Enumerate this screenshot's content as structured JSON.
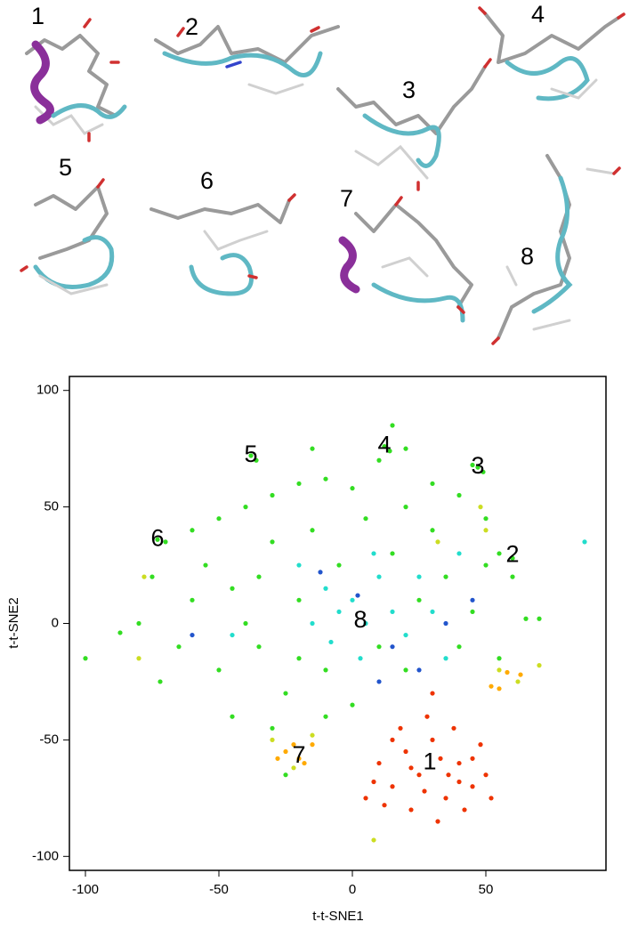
{
  "structures": {
    "labels": [
      "1",
      "2",
      "3",
      "4",
      "5",
      "6",
      "7",
      "8"
    ]
  },
  "chart_data": {
    "type": "scatter",
    "x_label": "t-t-SNE1",
    "y_label": "t-t-SNE2",
    "xlim": [
      -106,
      95
    ],
    "ylim": [
      -106,
      106
    ],
    "xticks": [
      -100,
      -50,
      0,
      50
    ],
    "yticks": [
      -100,
      -50,
      0,
      50,
      100
    ],
    "grid": false,
    "series": [
      {
        "color": "#33dd22",
        "x": [
          -60,
          -50,
          -40,
          -30,
          -20,
          -10,
          0,
          10,
          15,
          20,
          30,
          40,
          45,
          50,
          55,
          60,
          65,
          -70,
          -75,
          -80,
          -72,
          -65,
          -60,
          -55,
          -50,
          -45,
          -40,
          -35,
          -30,
          -25,
          -20,
          -15,
          -10,
          -5,
          5,
          10,
          15,
          20,
          25,
          30,
          35,
          40,
          45,
          50,
          55,
          -38,
          -36,
          12,
          14,
          47,
          49,
          -30,
          -10,
          0,
          -20,
          -45,
          -35,
          20,
          -15,
          -87,
          -100,
          -73,
          60,
          70,
          -25
        ],
        "y": [
          40,
          45,
          50,
          55,
          60,
          62,
          58,
          70,
          85,
          75,
          60,
          55,
          68,
          45,
          30,
          20,
          2,
          35,
          20,
          0,
          -25,
          -10,
          10,
          25,
          -20,
          -40,
          0,
          20,
          35,
          -30,
          10,
          40,
          -20,
          25,
          45,
          -10,
          30,
          50,
          10,
          40,
          20,
          -10,
          5,
          25,
          -15,
          72,
          70,
          76,
          74,
          67,
          65,
          -45,
          -40,
          -35,
          -15,
          15,
          -10,
          -20,
          75,
          -4,
          -15,
          36,
          28,
          2,
          -65
        ]
      },
      {
        "color": "#22ddcc",
        "x": [
          0,
          5,
          -5,
          10,
          -10,
          15,
          20,
          -15,
          25,
          -20,
          30,
          3,
          8,
          -8,
          35,
          87,
          -45,
          40
        ],
        "y": [
          10,
          0,
          5,
          20,
          15,
          5,
          -5,
          0,
          20,
          25,
          5,
          -15,
          30,
          -8,
          -15,
          35,
          -5,
          30
        ]
      },
      {
        "color": "#2255cc",
        "x": [
          2,
          15,
          35,
          -12,
          25,
          -60,
          45,
          10
        ],
        "y": [
          12,
          -10,
          0,
          22,
          -20,
          -5,
          10,
          -25
        ]
      },
      {
        "color": "#ccdd22",
        "x": [
          -78,
          -80,
          -30,
          -15,
          50,
          48,
          55,
          8,
          -22,
          62,
          70,
          32
        ],
        "y": [
          20,
          -15,
          -50,
          -48,
          40,
          50,
          -20,
          -93,
          -62,
          -25,
          -18,
          35
        ]
      },
      {
        "color": "#ffaa00",
        "x": [
          -25,
          -20,
          -15,
          -18,
          -22,
          52,
          55,
          63,
          58,
          -28
        ],
        "y": [
          -55,
          -58,
          -52,
          -60,
          -52,
          -27,
          -28,
          -22,
          -21,
          -58
        ]
      },
      {
        "color": "#ee3300",
        "x": [
          10,
          15,
          20,
          25,
          30,
          35,
          40,
          45,
          12,
          22,
          32,
          42,
          50,
          18,
          28,
          38,
          48,
          8,
          27,
          33,
          40,
          22,
          15,
          45,
          52,
          5,
          30,
          36
        ],
        "y": [
          -60,
          -70,
          -55,
          -65,
          -50,
          -75,
          -60,
          -70,
          -78,
          -80,
          -85,
          -80,
          -65,
          -45,
          -40,
          -45,
          -52,
          -68,
          -72,
          -58,
          -68,
          -62,
          -50,
          -58,
          -75,
          -75,
          -30,
          -65
        ]
      }
    ],
    "annotations": [
      {
        "text": "1",
        "x": 29,
        "y": -60
      },
      {
        "text": "2",
        "x": 60,
        "y": 29
      },
      {
        "text": "3",
        "x": 47,
        "y": 67
      },
      {
        "text": "4",
        "x": 12,
        "y": 76
      },
      {
        "text": "5",
        "x": -38,
        "y": 72
      },
      {
        "text": "6",
        "x": -73,
        "y": 36
      },
      {
        "text": "7",
        "x": -20,
        "y": -57
      },
      {
        "text": "8",
        "x": 3,
        "y": 1
      }
    ]
  }
}
